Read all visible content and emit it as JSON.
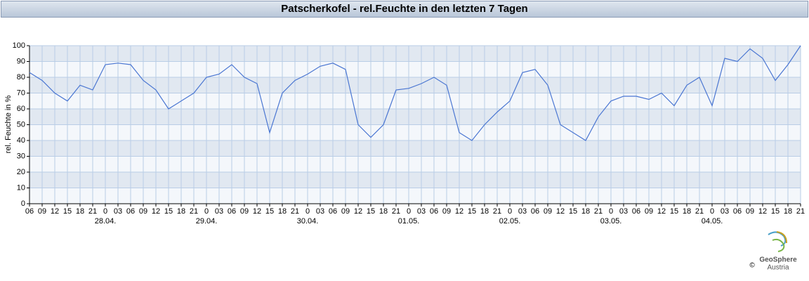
{
  "chart_data": {
    "type": "line",
    "title": "Patscherkofel - rel.Feuchte in den letzten 7 Tagen",
    "y_label": "rel. Feuchte in %",
    "color": "#4a76d2",
    "grid": true,
    "x": [
      0,
      3,
      6,
      9,
      12,
      15,
      18,
      21,
      24,
      27,
      30,
      33,
      36,
      39,
      42,
      45,
      48,
      51,
      54,
      57,
      60,
      63,
      66,
      69,
      72,
      75,
      78,
      81,
      84,
      87,
      90,
      93,
      96,
      99,
      102,
      105,
      108,
      111,
      114,
      117,
      120,
      123,
      126,
      129,
      132,
      135,
      138,
      141,
      144,
      147,
      150,
      153,
      156,
      159,
      162,
      165,
      168,
      171,
      174,
      177,
      180,
      183
    ],
    "values": [
      83,
      78,
      70,
      65,
      75,
      72,
      88,
      89,
      88,
      78,
      72,
      60,
      65,
      70,
      80,
      82,
      88,
      80,
      76,
      45,
      70,
      78,
      82,
      87,
      89,
      85,
      50,
      42,
      50,
      72,
      73,
      76,
      80,
      75,
      45,
      40,
      50,
      58,
      65,
      83,
      85,
      75,
      50,
      45,
      40,
      55,
      65,
      68,
      68,
      66,
      70,
      62,
      75,
      80,
      62,
      92,
      90,
      98,
      92,
      78,
      88,
      100
    ],
    "xlim": [
      0,
      183
    ],
    "ylim": [
      0,
      100
    ],
    "yticks": [
      0,
      10,
      20,
      30,
      40,
      50,
      60,
      70,
      80,
      90,
      100
    ],
    "xticks": [
      {
        "value": 0,
        "label": "06"
      },
      {
        "value": 3,
        "label": "09"
      },
      {
        "value": 6,
        "label": "12"
      },
      {
        "value": 9,
        "label": "15"
      },
      {
        "value": 12,
        "label": "18"
      },
      {
        "value": 15,
        "label": "21"
      },
      {
        "value": 18,
        "label": "0"
      },
      {
        "value": 21,
        "label": "03"
      },
      {
        "value": 24,
        "label": "06"
      },
      {
        "value": 27,
        "label": "09"
      },
      {
        "value": 30,
        "label": "12"
      },
      {
        "value": 33,
        "label": "15"
      },
      {
        "value": 36,
        "label": "18"
      },
      {
        "value": 39,
        "label": "21"
      },
      {
        "value": 42,
        "label": "0"
      },
      {
        "value": 45,
        "label": "03"
      },
      {
        "value": 48,
        "label": "06"
      },
      {
        "value": 51,
        "label": "09"
      },
      {
        "value": 54,
        "label": "12"
      },
      {
        "value": 57,
        "label": "15"
      },
      {
        "value": 60,
        "label": "18"
      },
      {
        "value": 63,
        "label": "21"
      },
      {
        "value": 66,
        "label": "0"
      },
      {
        "value": 69,
        "label": "03"
      },
      {
        "value": 72,
        "label": "06"
      },
      {
        "value": 75,
        "label": "09"
      },
      {
        "value": 78,
        "label": "12"
      },
      {
        "value": 81,
        "label": "15"
      },
      {
        "value": 84,
        "label": "18"
      },
      {
        "value": 87,
        "label": "21"
      },
      {
        "value": 90,
        "label": "0"
      },
      {
        "value": 93,
        "label": "03"
      },
      {
        "value": 96,
        "label": "06"
      },
      {
        "value": 99,
        "label": "09"
      },
      {
        "value": 102,
        "label": "12"
      },
      {
        "value": 105,
        "label": "15"
      },
      {
        "value": 108,
        "label": "18"
      },
      {
        "value": 111,
        "label": "21"
      },
      {
        "value": 114,
        "label": "0"
      },
      {
        "value": 117,
        "label": "03"
      },
      {
        "value": 120,
        "label": "06"
      },
      {
        "value": 123,
        "label": "09"
      },
      {
        "value": 126,
        "label": "12"
      },
      {
        "value": 129,
        "label": "15"
      },
      {
        "value": 132,
        "label": "18"
      },
      {
        "value": 135,
        "label": "21"
      },
      {
        "value": 138,
        "label": "0"
      },
      {
        "value": 141,
        "label": "03"
      },
      {
        "value": 144,
        "label": "06"
      },
      {
        "value": 147,
        "label": "09"
      },
      {
        "value": 150,
        "label": "12"
      },
      {
        "value": 153,
        "label": "15"
      },
      {
        "value": 156,
        "label": "18"
      },
      {
        "value": 159,
        "label": "21"
      },
      {
        "value": 162,
        "label": "0"
      },
      {
        "value": 165,
        "label": "03"
      },
      {
        "value": 168,
        "label": "06"
      },
      {
        "value": 171,
        "label": "09"
      },
      {
        "value": 174,
        "label": "12"
      },
      {
        "value": 177,
        "label": "15"
      },
      {
        "value": 180,
        "label": "18"
      },
      {
        "value": 183,
        "label": "21"
      }
    ],
    "date_labels": [
      {
        "value": 18,
        "label": "28.04."
      },
      {
        "value": 42,
        "label": "29.04."
      },
      {
        "value": 66,
        "label": "30.04."
      },
      {
        "value": 90,
        "label": "01.05."
      },
      {
        "value": 114,
        "label": "02.05."
      },
      {
        "value": 138,
        "label": "03.05."
      },
      {
        "value": 162,
        "label": "04.05."
      }
    ]
  },
  "logo": {
    "name": "GeoSphere",
    "sub": "Austria",
    "copyright": "©"
  }
}
